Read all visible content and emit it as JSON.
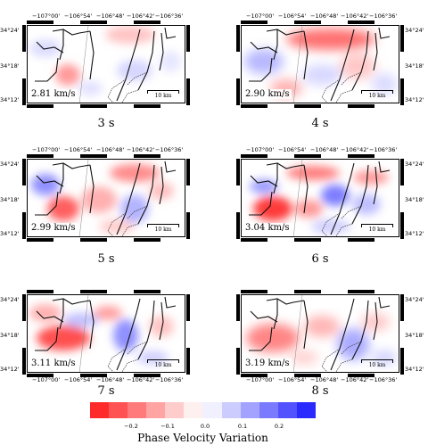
{
  "panels": [
    {
      "velocity": "2.81 km/s",
      "period": "3 s"
    },
    {
      "velocity": "2.90 km/s",
      "period": "4 s"
    },
    {
      "velocity": "2.99 km/s",
      "period": "5 s"
    },
    {
      "velocity": "3.04 km/s",
      "period": "6 s"
    },
    {
      "velocity": "3.11 km/s",
      "period": "7 s"
    },
    {
      "velocity": "3.19 km/s",
      "period": "8 s"
    }
  ],
  "lon_labels": [
    "−107°00'",
    "−106°54'",
    "−106°48'",
    "−106°42'",
    "−106°36'"
  ],
  "lat_labels": [
    "34°24'",
    "34°18'",
    "34°12'"
  ],
  "scale_label": "10 km",
  "colorbar": {
    "title": "Phase Velocity Variation",
    "ticks": [
      "−0.2",
      "−0.1",
      "0.0",
      "0.1",
      "0.2"
    ],
    "colors": [
      "#ff2a2a",
      "#ff5252",
      "#ff7a7a",
      "#ffa3a3",
      "#ffcccc",
      "#fff0f0",
      "#f0f0ff",
      "#ccccff",
      "#a3a3ff",
      "#7a7aff",
      "#5252ff",
      "#2a2aff"
    ]
  },
  "icons": {
    "scale_bar": "scale-bar-icon"
  }
}
